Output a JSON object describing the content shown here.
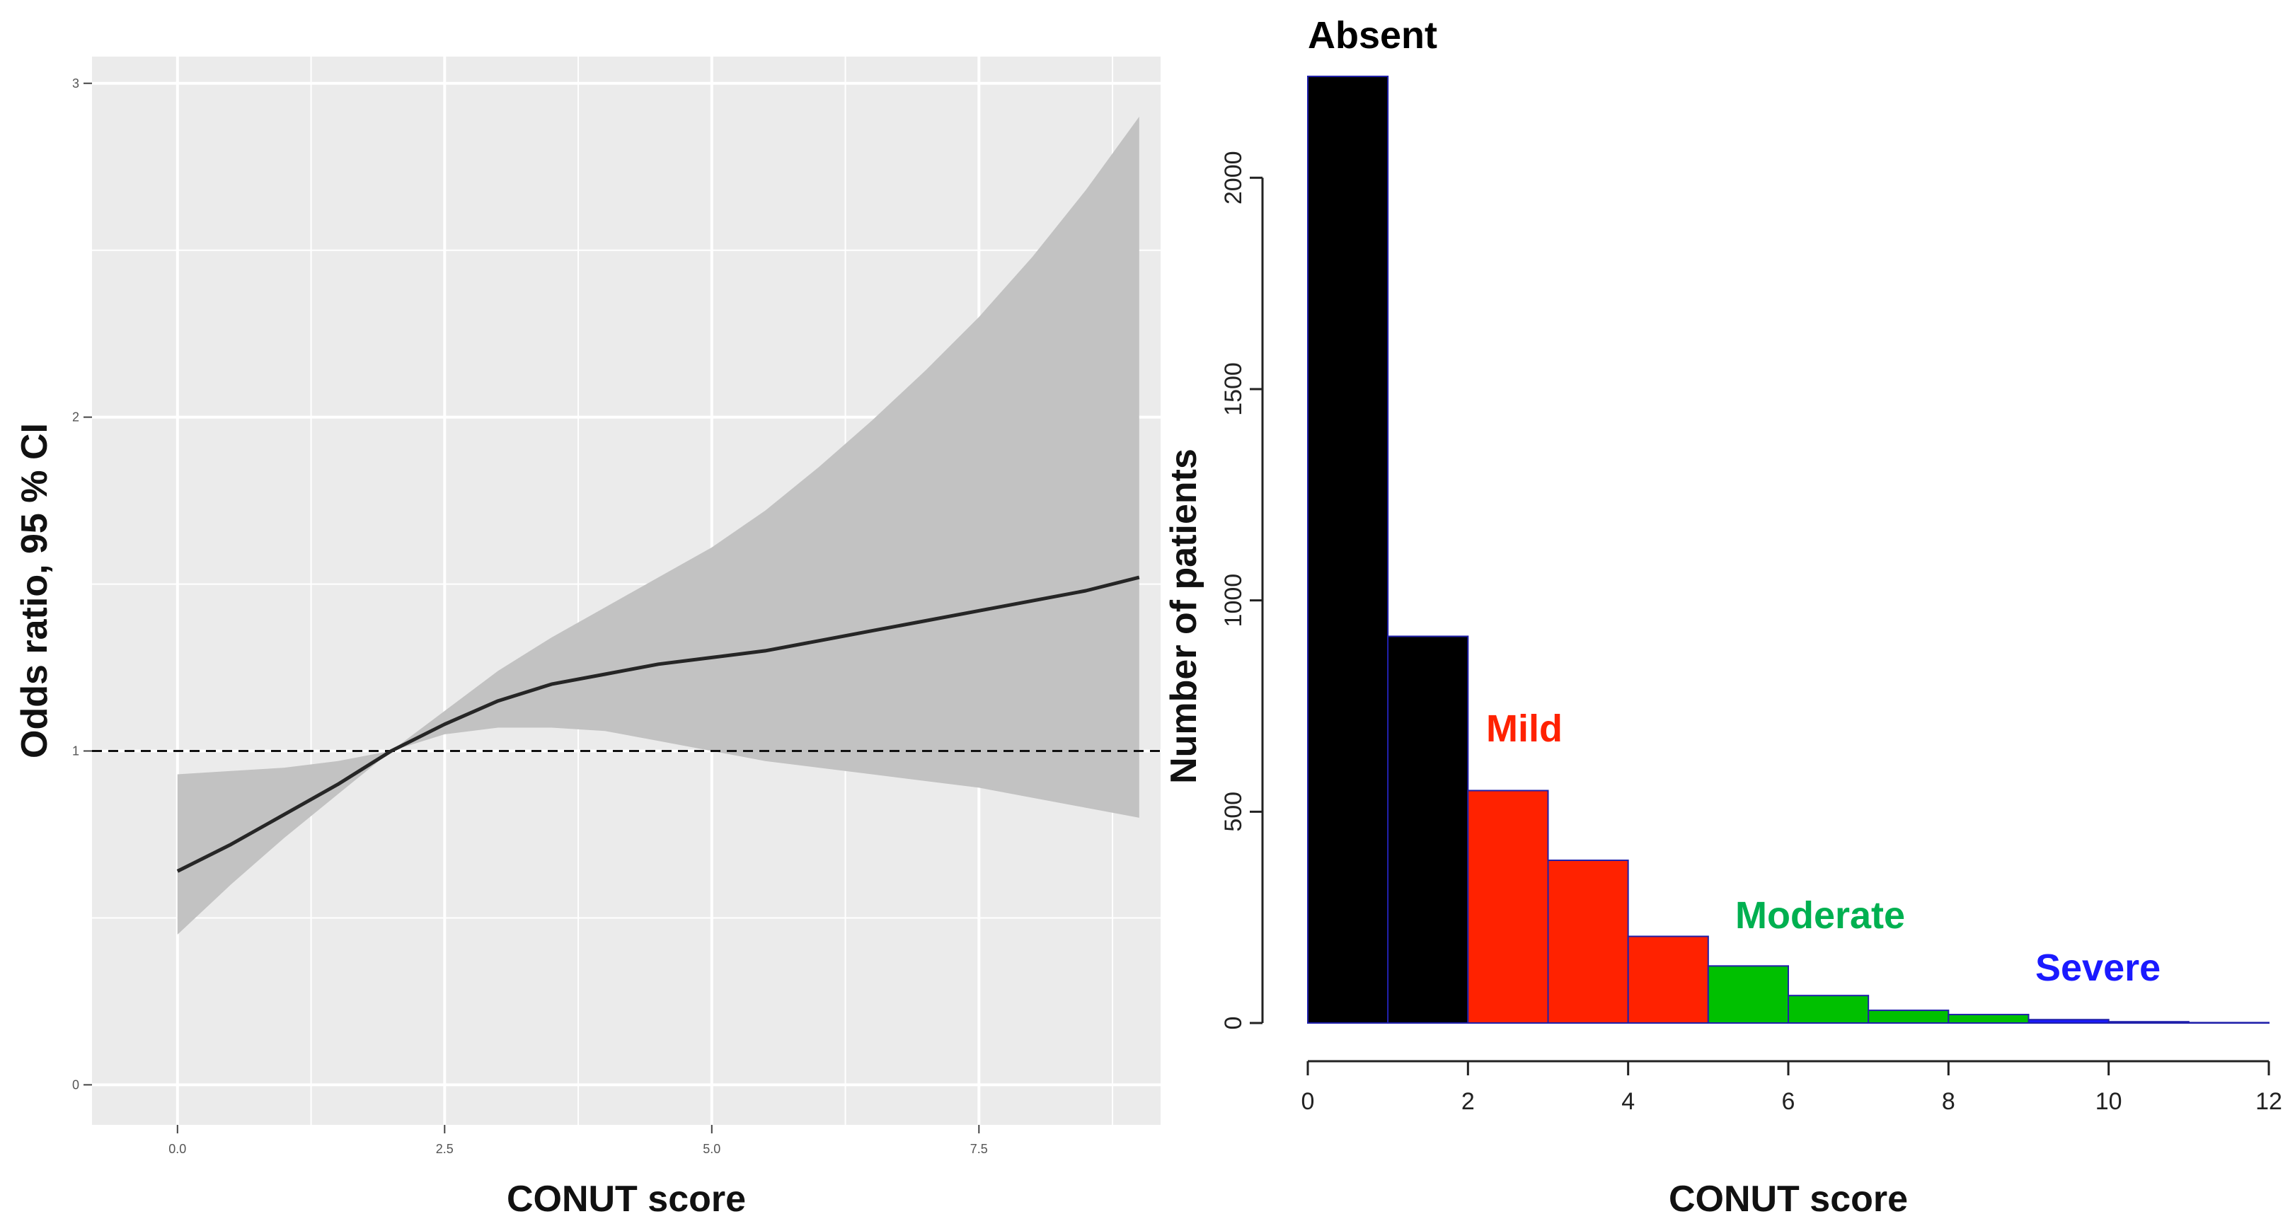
{
  "chart_data": [
    {
      "type": "line",
      "xlabel": "CONUT score",
      "ylabel": "Odds ratio, 95 % CI",
      "xlim": [
        -0.8,
        9.2
      ],
      "ylim": [
        -0.12,
        3.08
      ],
      "xticks": [
        0.0,
        2.5,
        5.0,
        7.5
      ],
      "xtick_labels": [
        "0.0",
        "2.5",
        "5.0",
        "7.5"
      ],
      "yticks": [
        0,
        1,
        2,
        3
      ],
      "ytick_labels": [
        "0",
        "1",
        "2",
        "3"
      ],
      "grid": true,
      "reference_line": {
        "y": 1,
        "style": "dashed"
      },
      "series": [
        {
          "x": [
            0,
            0.5,
            1,
            1.5,
            2,
            2.5,
            3,
            3.5,
            4,
            4.5,
            5,
            5.5,
            6,
            6.5,
            7,
            7.5,
            8,
            8.5,
            9
          ],
          "y": [
            0.64,
            0.72,
            0.81,
            0.9,
            1.0,
            1.08,
            1.15,
            1.2,
            1.23,
            1.26,
            1.28,
            1.3,
            1.33,
            1.36,
            1.39,
            1.42,
            1.45,
            1.48,
            1.52
          ],
          "ci_lower": [
            0.45,
            0.6,
            0.74,
            0.87,
            1.0,
            1.05,
            1.07,
            1.07,
            1.06,
            1.03,
            1.0,
            0.97,
            0.95,
            0.93,
            0.91,
            0.89,
            0.86,
            0.83,
            0.8
          ],
          "ci_upper": [
            0.93,
            0.94,
            0.95,
            0.97,
            1.0,
            1.12,
            1.24,
            1.34,
            1.43,
            1.52,
            1.61,
            1.72,
            1.85,
            1.99,
            2.14,
            2.3,
            2.48,
            2.68,
            2.9
          ]
        }
      ],
      "colors": {
        "line": "#262626",
        "band": "#c2c2c2",
        "panel": "#ebebeb",
        "grid": "#ffffff"
      }
    },
    {
      "type": "bar",
      "xlabel": "CONUT score",
      "ylabel": "Number of patients",
      "xlim": [
        0,
        12
      ],
      "ylim": [
        0,
        2260
      ],
      "xticks": [
        0,
        2,
        4,
        6,
        8,
        10,
        12
      ],
      "xtick_labels": [
        "0",
        "2",
        "4",
        "6",
        "8",
        "10",
        "12"
      ],
      "yticks": [
        0,
        500,
        1000,
        1500,
        2000
      ],
      "ytick_labels": [
        "0",
        "500",
        "1000",
        "1500",
        "2000"
      ],
      "grid": false,
      "bins": [
        {
          "start": 0,
          "end": 1,
          "value": 2240,
          "group": "Absent"
        },
        {
          "start": 1,
          "end": 2,
          "value": 915,
          "group": "Absent"
        },
        {
          "start": 2,
          "end": 3,
          "value": 550,
          "group": "Mild"
        },
        {
          "start": 3,
          "end": 4,
          "value": 385,
          "group": "Mild"
        },
        {
          "start": 4,
          "end": 5,
          "value": 205,
          "group": "Mild"
        },
        {
          "start": 5,
          "end": 6,
          "value": 135,
          "group": "Moderate"
        },
        {
          "start": 6,
          "end": 7,
          "value": 65,
          "group": "Moderate"
        },
        {
          "start": 7,
          "end": 8,
          "value": 30,
          "group": "Moderate"
        },
        {
          "start": 8,
          "end": 9,
          "value": 20,
          "group": "Moderate"
        },
        {
          "start": 9,
          "end": 10,
          "value": 8,
          "group": "Severe"
        },
        {
          "start": 10,
          "end": 11,
          "value": 3,
          "group": "Severe"
        },
        {
          "start": 11,
          "end": 12,
          "value": 1,
          "group": "Severe"
        }
      ],
      "annotations": [
        {
          "text": "Absent",
          "color": "#000000"
        },
        {
          "text": "Mild",
          "color": "#ff2200"
        },
        {
          "text": "Moderate",
          "color": "#00b050"
        },
        {
          "text": "Severe",
          "color": "#1a1aff"
        }
      ],
      "group_colors": {
        "Absent": "#000000",
        "Mild": "#ff2200",
        "Moderate": "#00c000",
        "Severe": "#1a1aff"
      },
      "bar_edge_color": "#2020aa"
    }
  ]
}
